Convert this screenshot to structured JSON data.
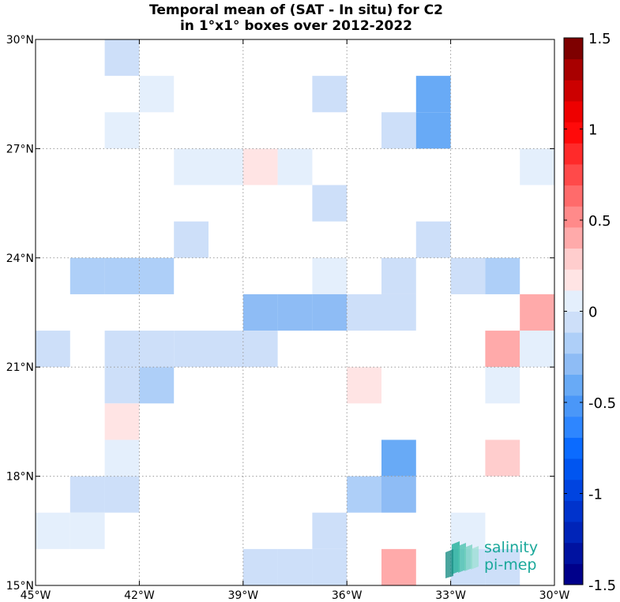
{
  "chart_data": {
    "type": "heatmap",
    "title_lines": [
      "Temporal mean of (SAT - In situ) for C2",
      "in 1°x1° boxes over 2012-2022"
    ],
    "x_ticks": [
      {
        "value": -45,
        "label": "45°W"
      },
      {
        "value": -42,
        "label": "42°W"
      },
      {
        "value": -39,
        "label": "39°W"
      },
      {
        "value": -36,
        "label": "36°W"
      },
      {
        "value": -33,
        "label": "33°W"
      },
      {
        "value": -30,
        "label": "30°W"
      }
    ],
    "y_ticks": [
      {
        "value": 15,
        "label": "15°N"
      },
      {
        "value": 18,
        "label": "18°N"
      },
      {
        "value": 21,
        "label": "21°N"
      },
      {
        "value": 24,
        "label": "24°N"
      },
      {
        "value": 27,
        "label": "27°N"
      },
      {
        "value": 30,
        "label": "30°N"
      }
    ],
    "xlim": [
      -45,
      -30
    ],
    "ylim": [
      15,
      30
    ],
    "grid": true,
    "colorbar": {
      "range": [
        -1.5,
        1.5
      ],
      "steps": 26,
      "ticks": [
        {
          "value": 1.5,
          "label": "1.5"
        },
        {
          "value": 1,
          "label": "1"
        },
        {
          "value": 0.5,
          "label": "0.5"
        },
        {
          "value": 0,
          "label": "0"
        },
        {
          "value": -0.5,
          "label": "-0.5"
        },
        {
          "value": -1,
          "label": "-1"
        },
        {
          "value": -1.5,
          "label": "-1.5"
        }
      ],
      "colors": [
        "#00008a",
        "#0012a0",
        "#0024b8",
        "#0033cc",
        "#0044e0",
        "#0055f0",
        "#0b6bff",
        "#2e86ff",
        "#4a97f8",
        "#68aaf6",
        "#8ebcf5",
        "#aecff8",
        "#cddff9",
        "#e4effc",
        "#ffe4e4",
        "#ffcdcd",
        "#ffaaaa",
        "#ff8a8a",
        "#ff6b6b",
        "#ff4a4a",
        "#ff2a2a",
        "#ff0a0a",
        "#ee0000",
        "#cc0000",
        "#a80000",
        "#7e0000"
      ]
    },
    "cells": [
      {
        "lon": -43,
        "lat": 29,
        "value": -0.08
      },
      {
        "lon": -42,
        "lat": 28,
        "value": 0.1
      },
      {
        "lon": -37,
        "lat": 28,
        "value": -0.08
      },
      {
        "lon": -34,
        "lat": 28,
        "value": -0.4
      },
      {
        "lon": -43,
        "lat": 27,
        "value": 0.1
      },
      {
        "lon": -35,
        "lat": 27,
        "value": -0.08
      },
      {
        "lon": -34,
        "lat": 27,
        "value": -0.4
      },
      {
        "lon": -41,
        "lat": 26,
        "value": 0.1
      },
      {
        "lon": -40,
        "lat": 26,
        "value": 0.1
      },
      {
        "lon": -39,
        "lat": 26,
        "value": 0.22
      },
      {
        "lon": -38,
        "lat": 26,
        "value": 0.1
      },
      {
        "lon": -31,
        "lat": 26,
        "value": 0.1
      },
      {
        "lon": -37,
        "lat": 25,
        "value": -0.08
      },
      {
        "lon": -41,
        "lat": 24,
        "value": -0.08
      },
      {
        "lon": -34,
        "lat": 24,
        "value": -0.08
      },
      {
        "lon": -44,
        "lat": 23,
        "value": -0.12
      },
      {
        "lon": -43,
        "lat": 23,
        "value": -0.2
      },
      {
        "lon": -42,
        "lat": 23,
        "value": -0.2
      },
      {
        "lon": -37,
        "lat": 23,
        "value": 0.1
      },
      {
        "lon": -35,
        "lat": 23,
        "value": -0.08
      },
      {
        "lon": -33,
        "lat": 23,
        "value": -0.08
      },
      {
        "lon": -32,
        "lat": 23,
        "value": -0.2
      },
      {
        "lon": -39,
        "lat": 22,
        "value": -0.25
      },
      {
        "lon": -38,
        "lat": 22,
        "value": -0.3
      },
      {
        "lon": -37,
        "lat": 22,
        "value": -0.3
      },
      {
        "lon": -36,
        "lat": 22,
        "value": -0.08
      },
      {
        "lon": -35,
        "lat": 22,
        "value": -0.08
      },
      {
        "lon": -31,
        "lat": 22,
        "value": 0.45
      },
      {
        "lon": -45,
        "lat": 21,
        "value": -0.08
      },
      {
        "lon": -43,
        "lat": 21,
        "value": -0.08
      },
      {
        "lon": -42,
        "lat": 21,
        "value": -0.08
      },
      {
        "lon": -41,
        "lat": 21,
        "value": -0.08
      },
      {
        "lon": -40,
        "lat": 21,
        "value": -0.08
      },
      {
        "lon": -39,
        "lat": 21,
        "value": -0.08
      },
      {
        "lon": -32,
        "lat": 21,
        "value": 0.45
      },
      {
        "lon": -31,
        "lat": 21,
        "value": 0.1
      },
      {
        "lon": -43,
        "lat": 20,
        "value": -0.08
      },
      {
        "lon": -42,
        "lat": 20,
        "value": -0.2
      },
      {
        "lon": -36,
        "lat": 20,
        "value": 0.22
      },
      {
        "lon": -32,
        "lat": 20,
        "value": 0.1
      },
      {
        "lon": -43,
        "lat": 19,
        "value": 0.22
      },
      {
        "lon": -43,
        "lat": 18,
        "value": 0.1
      },
      {
        "lon": -35,
        "lat": 18,
        "value": -0.4
      },
      {
        "lon": -32,
        "lat": 18,
        "value": 0.3
      },
      {
        "lon": -44,
        "lat": 17,
        "value": -0.08
      },
      {
        "lon": -43,
        "lat": 17,
        "value": -0.08
      },
      {
        "lon": -36,
        "lat": 17,
        "value": -0.2
      },
      {
        "lon": -35,
        "lat": 17,
        "value": -0.25
      },
      {
        "lon": -45,
        "lat": 16,
        "value": 0.1
      },
      {
        "lon": -44,
        "lat": 16,
        "value": 0.1
      },
      {
        "lon": -37,
        "lat": 16,
        "value": -0.08
      },
      {
        "lon": -33,
        "lat": 16,
        "value": 0.1
      },
      {
        "lon": -39,
        "lat": 15,
        "value": -0.08
      },
      {
        "lon": -38,
        "lat": 15,
        "value": -0.08
      },
      {
        "lon": -37,
        "lat": 15,
        "value": -0.08
      },
      {
        "lon": -35,
        "lat": 15,
        "value": 0.45
      },
      {
        "lon": -33,
        "lat": 15,
        "value": -0.08
      },
      {
        "lon": -32,
        "lat": 15,
        "value": -0.08
      }
    ]
  },
  "logo": {
    "line1": "salinity",
    "line2": "pi-mep",
    "color": "#1aa89a"
  }
}
